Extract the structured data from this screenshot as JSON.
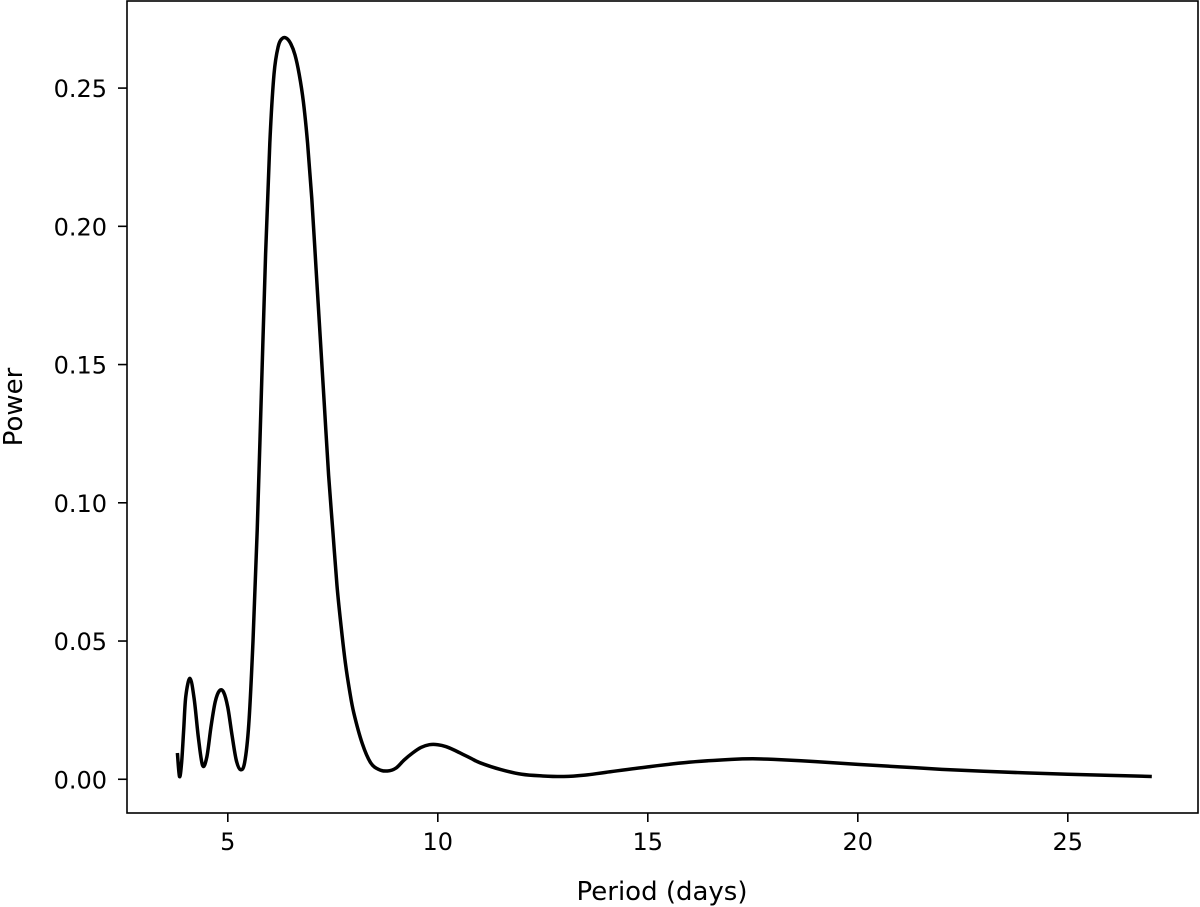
{
  "chart_data": {
    "type": "line",
    "title": "",
    "xlabel": "Period (days)",
    "ylabel": "Power",
    "xlim": [
      2.6,
      28.1
    ],
    "ylim": [
      -0.0122,
      0.2815
    ],
    "grid": false,
    "legend": "none",
    "line_color": "#000000",
    "xticks": [
      {
        "value": 5,
        "label": "5"
      },
      {
        "value": 10,
        "label": "10"
      },
      {
        "value": 15,
        "label": "15"
      },
      {
        "value": 20,
        "label": "20"
      },
      {
        "value": 25,
        "label": "25"
      }
    ],
    "yticks": [
      {
        "value": 0.0,
        "label": "0.00"
      },
      {
        "value": 0.05,
        "label": "0.05"
      },
      {
        "value": 0.1,
        "label": "0.10"
      },
      {
        "value": 0.15,
        "label": "0.15"
      },
      {
        "value": 0.2,
        "label": "0.20"
      },
      {
        "value": 0.25,
        "label": "0.25"
      }
    ],
    "series": [
      {
        "x": [
          3.8,
          3.85,
          3.9,
          3.95,
          4.0,
          4.1,
          4.2,
          4.3,
          4.4,
          4.5,
          4.6,
          4.7,
          4.8,
          4.9,
          5.0,
          5.1,
          5.2,
          5.3,
          5.4,
          5.5,
          5.6,
          5.7,
          5.8,
          5.9,
          6.0,
          6.1,
          6.2,
          6.3,
          6.4,
          6.5,
          6.6,
          6.7,
          6.8,
          6.9,
          7.0,
          7.1,
          7.2,
          7.3,
          7.4,
          7.5,
          7.6,
          7.7,
          7.8,
          7.9,
          8.0,
          8.2,
          8.4,
          8.6,
          8.8,
          9.0,
          9.2,
          9.4,
          9.6,
          9.8,
          10.0,
          10.2,
          10.4,
          10.6,
          10.8,
          11.0,
          11.5,
          12.0,
          12.5,
          13.0,
          13.5,
          14.0,
          15.0,
          16.0,
          17.0,
          17.5,
          18.0,
          19.0,
          20.0,
          21.0,
          22.0,
          23.0,
          24.0,
          25.0,
          26.0,
          27.0
        ],
        "y": [
          0.0095,
          0.001,
          0.006,
          0.018,
          0.03,
          0.0365,
          0.029,
          0.015,
          0.005,
          0.008,
          0.019,
          0.028,
          0.032,
          0.0315,
          0.026,
          0.016,
          0.007,
          0.0035,
          0.006,
          0.02,
          0.05,
          0.09,
          0.14,
          0.19,
          0.23,
          0.255,
          0.265,
          0.268,
          0.268,
          0.266,
          0.262,
          0.255,
          0.245,
          0.23,
          0.21,
          0.185,
          0.16,
          0.135,
          0.11,
          0.09,
          0.07,
          0.055,
          0.042,
          0.032,
          0.024,
          0.013,
          0.006,
          0.0035,
          0.003,
          0.004,
          0.007,
          0.0095,
          0.0115,
          0.0125,
          0.0125,
          0.0118,
          0.0105,
          0.009,
          0.0075,
          0.006,
          0.0035,
          0.0018,
          0.0012,
          0.001,
          0.0015,
          0.0025,
          0.0045,
          0.0062,
          0.0072,
          0.0074,
          0.0072,
          0.0064,
          0.0054,
          0.0045,
          0.0036,
          0.0029,
          0.0023,
          0.0018,
          0.0014,
          0.001
        ]
      }
    ]
  }
}
